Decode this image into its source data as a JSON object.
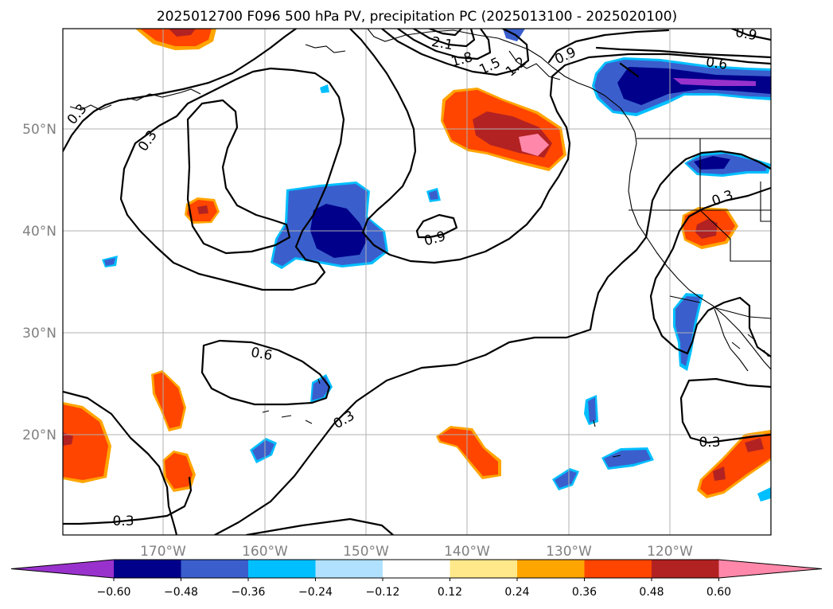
{
  "title": "2025012700 F096 500 hPa PV, precipitation PC (2025013100 - 2025020100)",
  "lon_ticks": [
    "170°W",
    "160°W",
    "150°W",
    "140°W",
    "130°W",
    "120°W"
  ],
  "lat_ticks": [
    "50°N",
    "40°N",
    "30°N",
    "20°N"
  ],
  "colorbar": {
    "ticks": [
      "−0.60",
      "−0.48",
      "−0.36",
      "−0.24",
      "−0.12",
      "0.12",
      "0.24",
      "0.36",
      "0.48",
      "0.60"
    ],
    "colors": [
      "#9932cc",
      "#00008b",
      "#3a5fcd",
      "#00bfff",
      "#b0e2ff",
      "#ffffff",
      "#ffe88a",
      "#ffa500",
      "#ff4500",
      "#b22222",
      "#ff88aa"
    ]
  },
  "contour_labels": [
    "0.3",
    "0.3",
    "0.3",
    "0.3",
    "0.3",
    "0.3",
    "0.6",
    "0.6",
    "0.9",
    "0.9",
    "0.9",
    "1.2",
    "1.5",
    "1.8",
    "2.1"
  ]
}
